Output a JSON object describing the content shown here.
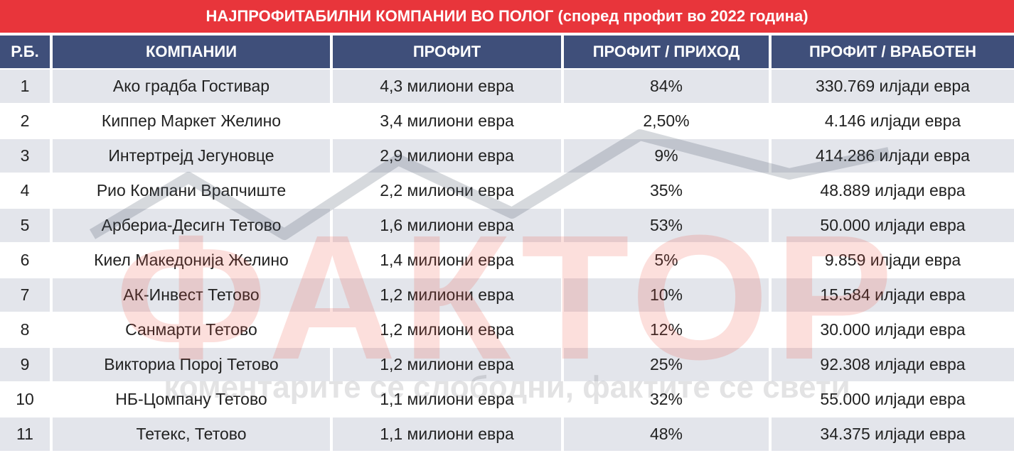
{
  "title": "НАЈПРОФИТАБИЛНИ КОМПАНИИ ВО ПОЛОГ (според профит во 2022 година)",
  "headers": [
    "Р.Б.",
    "КОМПАНИИ",
    "ПРОФИТ",
    "ПРОФИТ / ПРИХОД",
    "ПРОФИТ / ВРАБОТЕН"
  ],
  "rows": [
    [
      "1",
      "Ако градба Гостивар",
      "4,3 милиони евра",
      "84%",
      "330.769 илјади евра"
    ],
    [
      "2",
      "Киппер Маркет Желино",
      "3,4 милиони евра",
      "2,50%",
      "4.146 илјади евра"
    ],
    [
      "3",
      "Интертрејд Јегуновце",
      "2,9 милиони евра",
      "9%",
      "414.286 илјади евра"
    ],
    [
      "4",
      "Рио Компани Врапчиште",
      "2,2 милиони евра",
      "35%",
      "48.889 илјади евра"
    ],
    [
      "5",
      "Арбериа-Десигн  Тетово",
      "1,6 милиони евра",
      "53%",
      "50.000 илјади евра"
    ],
    [
      "6",
      "Киел Македонија Желино",
      "1,4 милиони евра",
      "5%",
      "9.859 илјади евра"
    ],
    [
      "7",
      "АК-Инвест Тетово",
      "1,2 милиони евра",
      "10%",
      "15.584 илјади евра"
    ],
    [
      "8",
      "Санмарти Тетово",
      "1,2 милиони евра",
      "12%",
      "30.000 илјади евра"
    ],
    [
      "9",
      "Викториа Пороj Тетово",
      "1,2 милиони евра",
      "25%",
      "92.308 илјади евра"
    ],
    [
      "10",
      "НБ-Цомпану Тетово",
      "1,1 милиони евра",
      "32%",
      "55.000 илјади евра"
    ],
    [
      "11",
      "Тетекс, Тетово",
      "1,1 милиони евра",
      "48%",
      "34.375 илјади евра"
    ]
  ],
  "watermark": {
    "logo": "ФАКТОР",
    "tagline": "коментарите се слободни, фактите се свети"
  },
  "colors": {
    "title_bg": "#e8353b",
    "header_bg": "#3f4f7a",
    "row_alt_bg": "#dee0e8"
  }
}
